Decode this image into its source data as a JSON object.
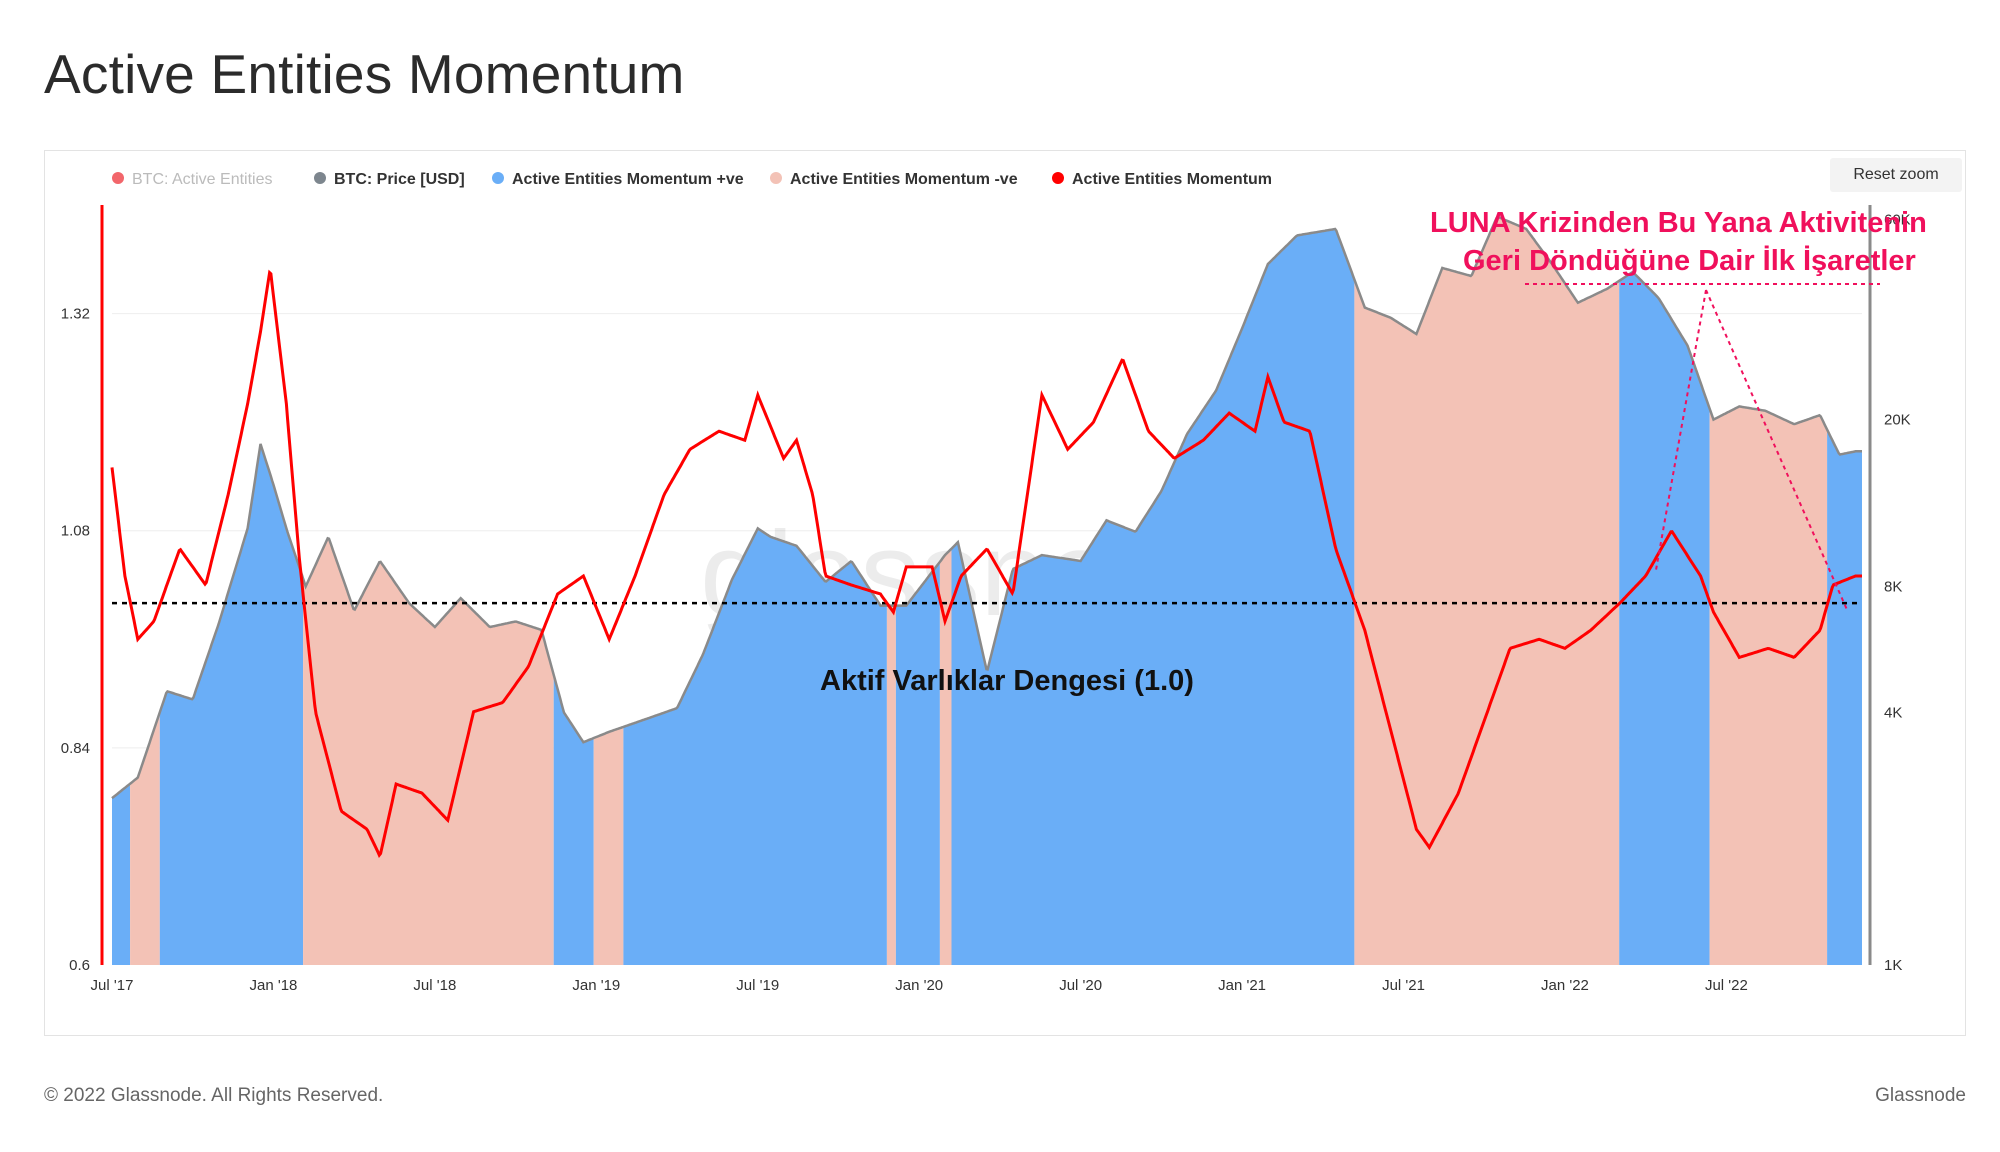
{
  "title": "Active Entities Momentum",
  "reset_zoom": "Reset zoom",
  "footer": {
    "copyright": "© 2022 Glassnode. All Rights Reserved.",
    "brand": "Glassnode"
  },
  "watermark": "glassnode",
  "colors": {
    "positive": "#6aaef7",
    "negative": "#f3c2b6",
    "momentum": "#ff0000",
    "price": "#8a8a8a",
    "annotation": "#f0105c"
  },
  "chart_data": {
    "type": "line",
    "legend": [
      {
        "label": "BTC: Active Entities",
        "color": "#f2666b",
        "muted": true
      },
      {
        "label": "BTC: Price [USD]",
        "color": "#7d868e"
      },
      {
        "label": "Active Entities Momentum +ve",
        "color": "#6aaef7"
      },
      {
        "label": "Active Entities Momentum -ve",
        "color": "#f3c2b6"
      },
      {
        "label": "Active Entities Momentum",
        "color": "#ff0000"
      }
    ],
    "x_ticks": [
      "Jul '17",
      "Jan '18",
      "Jul '18",
      "Jan '19",
      "Jul '19",
      "Jan '20",
      "Jul '20",
      "Jan '21",
      "Jul '21",
      "Jan '22",
      "Jul '22"
    ],
    "y_left_ticks": [
      "1.32",
      "1.08",
      "0.84",
      "0.6"
    ],
    "y_left_range": [
      0.6,
      1.44
    ],
    "y_right_ticks": [
      "60K",
      "20K",
      "8K",
      "4K",
      "1K"
    ],
    "y_right_scale": "log",
    "y_right_range": [
      1000,
      65000
    ],
    "x_range": [
      "2017-07",
      "2022-11"
    ],
    "equilibrium": {
      "value": 1.0,
      "label": "Aktif Varlıklar Dengesi (1.0)"
    },
    "annotation": {
      "lines": [
        "LUNA Krizinden Bu Yana Aktivitenin",
        "Geri Döndüğüne Dair İlk İşaretler"
      ]
    },
    "series": [
      {
        "name": "BTC: Price [USD]",
        "axis": "right",
        "points": [
          [
            2017.5,
            2500
          ],
          [
            2017.58,
            2800
          ],
          [
            2017.67,
            4500
          ],
          [
            2017.75,
            4300
          ],
          [
            2017.83,
            6500
          ],
          [
            2017.92,
            11000
          ],
          [
            2017.96,
            17500
          ],
          [
            2018.0,
            14000
          ],
          [
            2018.04,
            11000
          ],
          [
            2018.1,
            8000
          ],
          [
            2018.17,
            10500
          ],
          [
            2018.25,
            7000
          ],
          [
            2018.33,
            9200
          ],
          [
            2018.42,
            7300
          ],
          [
            2018.5,
            6400
          ],
          [
            2018.58,
            7500
          ],
          [
            2018.67,
            6400
          ],
          [
            2018.75,
            6600
          ],
          [
            2018.83,
            6300
          ],
          [
            2018.9,
            4000
          ],
          [
            2018.96,
            3400
          ],
          [
            2019.04,
            3600
          ],
          [
            2019.17,
            3900
          ],
          [
            2019.25,
            4100
          ],
          [
            2019.33,
            5500
          ],
          [
            2019.42,
            8300
          ],
          [
            2019.5,
            11000
          ],
          [
            2019.54,
            10500
          ],
          [
            2019.62,
            10000
          ],
          [
            2019.71,
            8200
          ],
          [
            2019.79,
            9200
          ],
          [
            2019.88,
            7200
          ],
          [
            2019.96,
            7200
          ],
          [
            2020.08,
            9500
          ],
          [
            2020.12,
            10200
          ],
          [
            2020.21,
            5000
          ],
          [
            2020.29,
            8800
          ],
          [
            2020.38,
            9500
          ],
          [
            2020.5,
            9200
          ],
          [
            2020.58,
            11500
          ],
          [
            2020.67,
            10800
          ],
          [
            2020.75,
            13500
          ],
          [
            2020.83,
            18500
          ],
          [
            2020.92,
            23500
          ],
          [
            2021.0,
            33000
          ],
          [
            2021.08,
            47000
          ],
          [
            2021.17,
            55000
          ],
          [
            2021.29,
            57000
          ],
          [
            2021.38,
            37000
          ],
          [
            2021.46,
            35000
          ],
          [
            2021.54,
            32000
          ],
          [
            2021.62,
            46000
          ],
          [
            2021.71,
            44000
          ],
          [
            2021.79,
            61000
          ],
          [
            2021.88,
            57000
          ],
          [
            2021.96,
            47000
          ],
          [
            2022.04,
            38000
          ],
          [
            2022.13,
            41000
          ],
          [
            2022.21,
            45000
          ],
          [
            2022.29,
            39000
          ],
          [
            2022.38,
            30000
          ],
          [
            2022.46,
            20000
          ],
          [
            2022.54,
            21500
          ],
          [
            2022.62,
            21000
          ],
          [
            2022.71,
            19500
          ],
          [
            2022.79,
            20500
          ],
          [
            2022.85,
            16500
          ],
          [
            2022.9,
            16800
          ]
        ]
      },
      {
        "name": "Active Entities Momentum",
        "axis": "left",
        "points": [
          [
            2017.5,
            1.15
          ],
          [
            2017.54,
            1.03
          ],
          [
            2017.58,
            0.96
          ],
          [
            2017.63,
            0.98
          ],
          [
            2017.71,
            1.06
          ],
          [
            2017.79,
            1.02
          ],
          [
            2017.86,
            1.12
          ],
          [
            2017.92,
            1.22
          ],
          [
            2017.96,
            1.3
          ],
          [
            2017.99,
            1.37
          ],
          [
            2018.04,
            1.22
          ],
          [
            2018.08,
            1.05
          ],
          [
            2018.13,
            0.88
          ],
          [
            2018.21,
            0.77
          ],
          [
            2018.29,
            0.75
          ],
          [
            2018.33,
            0.72
          ],
          [
            2018.38,
            0.8
          ],
          [
            2018.46,
            0.79
          ],
          [
            2018.54,
            0.76
          ],
          [
            2018.62,
            0.88
          ],
          [
            2018.71,
            0.89
          ],
          [
            2018.79,
            0.93
          ],
          [
            2018.88,
            1.01
          ],
          [
            2018.96,
            1.03
          ],
          [
            2019.04,
            0.96
          ],
          [
            2019.12,
            1.03
          ],
          [
            2019.21,
            1.12
          ],
          [
            2019.29,
            1.17
          ],
          [
            2019.38,
            1.19
          ],
          [
            2019.46,
            1.18
          ],
          [
            2019.5,
            1.23
          ],
          [
            2019.58,
            1.16
          ],
          [
            2019.62,
            1.18
          ],
          [
            2019.67,
            1.12
          ],
          [
            2019.71,
            1.03
          ],
          [
            2019.79,
            1.02
          ],
          [
            2019.88,
            1.01
          ],
          [
            2019.92,
            0.99
          ],
          [
            2019.96,
            1.04
          ],
          [
            2020.04,
            1.04
          ],
          [
            2020.08,
            0.98
          ],
          [
            2020.13,
            1.03
          ],
          [
            2020.21,
            1.06
          ],
          [
            2020.29,
            1.01
          ],
          [
            2020.38,
            1.23
          ],
          [
            2020.46,
            1.17
          ],
          [
            2020.54,
            1.2
          ],
          [
            2020.63,
            1.27
          ],
          [
            2020.71,
            1.19
          ],
          [
            2020.79,
            1.16
          ],
          [
            2020.88,
            1.18
          ],
          [
            2020.96,
            1.21
          ],
          [
            2021.04,
            1.19
          ],
          [
            2021.08,
            1.25
          ],
          [
            2021.13,
            1.2
          ],
          [
            2021.21,
            1.19
          ],
          [
            2021.29,
            1.06
          ],
          [
            2021.38,
            0.97
          ],
          [
            2021.46,
            0.86
          ],
          [
            2021.54,
            0.75
          ],
          [
            2021.58,
            0.73
          ],
          [
            2021.67,
            0.79
          ],
          [
            2021.75,
            0.87
          ],
          [
            2021.83,
            0.95
          ],
          [
            2021.92,
            0.96
          ],
          [
            2022.0,
            0.95
          ],
          [
            2022.08,
            0.97
          ],
          [
            2022.17,
            1.0
          ],
          [
            2022.25,
            1.03
          ],
          [
            2022.33,
            1.08
          ],
          [
            2022.42,
            1.03
          ],
          [
            2022.46,
            0.99
          ],
          [
            2022.54,
            0.94
          ],
          [
            2022.63,
            0.95
          ],
          [
            2022.71,
            0.94
          ],
          [
            2022.79,
            0.97
          ],
          [
            2022.83,
            1.02
          ],
          [
            2022.9,
            1.03
          ]
        ]
      }
    ]
  }
}
